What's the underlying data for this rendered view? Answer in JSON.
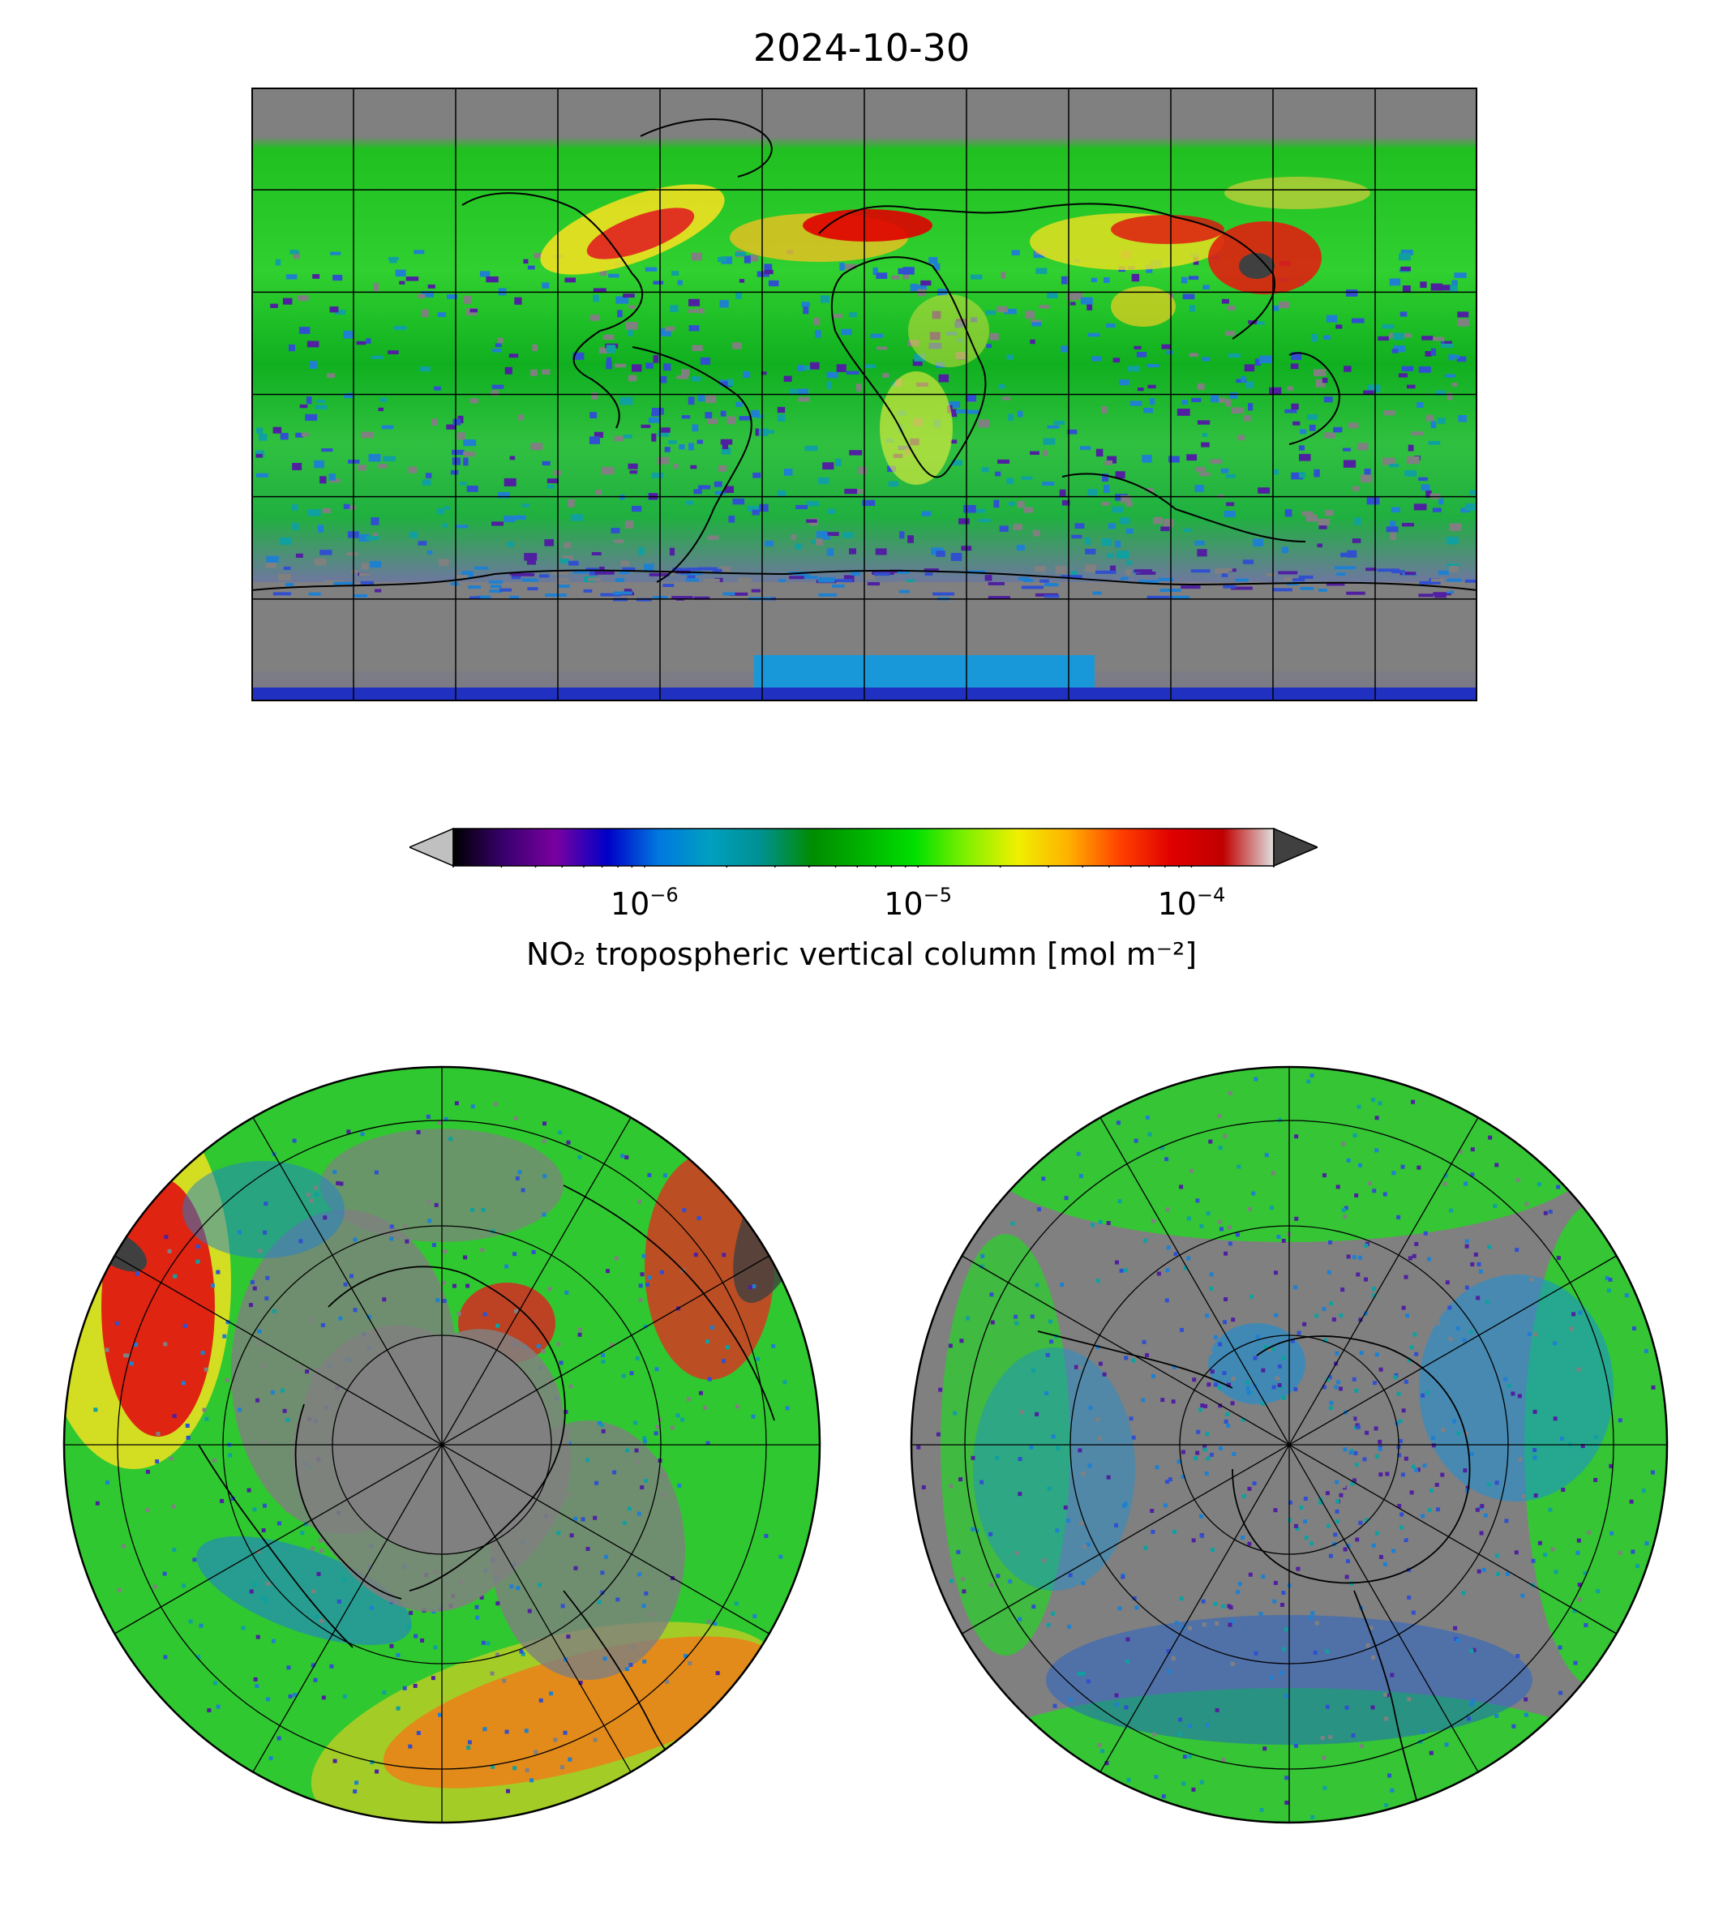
{
  "title": "2024-10-30",
  "colorbar": {
    "label": "NO₂ tropospheric vertical column [mol m⁻²]",
    "scale": "log",
    "range": [
      2e-07,
      0.0002
    ],
    "ticks": [
      {
        "value": 1e-06,
        "base": "10",
        "exp": "−6"
      },
      {
        "value": 1e-05,
        "base": "10",
        "exp": "−5"
      },
      {
        "value": 0.0001,
        "base": "10",
        "exp": "−4"
      }
    ],
    "extend": "both",
    "colors": {
      "under": "#c0c0c0",
      "over": "#404040",
      "missing": "#808080",
      "stops": [
        "#000000",
        "#3a0070",
        "#7a00a0",
        "#0000c8",
        "#0078e0",
        "#00a0c0",
        "#009090",
        "#008c00",
        "#00b400",
        "#00e000",
        "#80f000",
        "#f0f000",
        "#ffb000",
        "#ff4000",
        "#e00000",
        "#c00000",
        "#e0e0e0"
      ]
    }
  },
  "maps": {
    "world": {
      "projection": "plate-carree",
      "gridlines": true,
      "coastlines": true
    },
    "north": {
      "projection": "north-polar-stereographic",
      "gridlines": true,
      "coastlines": true
    },
    "south": {
      "projection": "south-polar-stereographic",
      "gridlines": true,
      "coastlines": true
    }
  }
}
